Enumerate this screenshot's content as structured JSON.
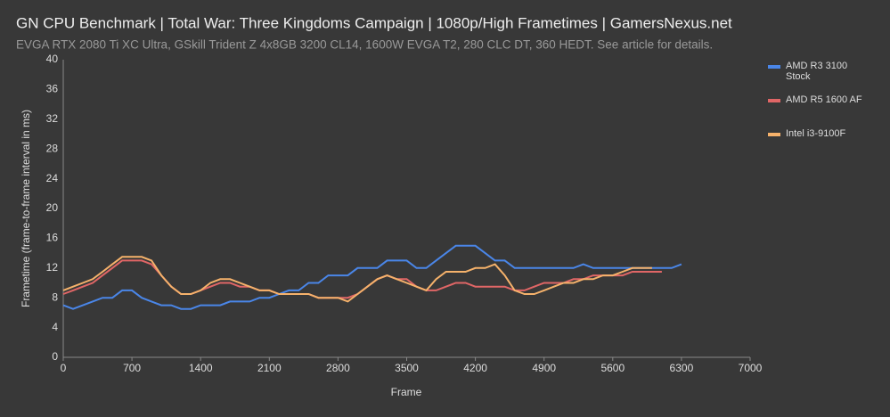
{
  "chart_data": {
    "type": "line",
    "title": "GN CPU Benchmark | Total War: Three Kingdoms Campaign | 1080p/High Frametimes | GamersNexus.net",
    "subtitle": "EVGA RTX 2080 Ti XC Ultra, GSkill Trident Z 4x8GB 3200 CL14, 1600W EVGA T2, 280 CLC DT, 360 HEDT. See article for details.",
    "x_label": "Frame",
    "y_label": "Frametime (frame-to-frame interval in ms)",
    "x": [
      0,
      100,
      200,
      300,
      400,
      500,
      600,
      700,
      800,
      900,
      1000,
      1100,
      1200,
      1300,
      1400,
      1500,
      1600,
      1700,
      1800,
      1900,
      2000,
      2100,
      2200,
      2300,
      2400,
      2500,
      2600,
      2700,
      2800,
      2900,
      3000,
      3100,
      3200,
      3300,
      3400,
      3500,
      3600,
      3700,
      3800,
      3900,
      4000,
      4100,
      4200,
      4300,
      4400,
      4500,
      4600,
      4700,
      4800,
      4900,
      5000,
      5100,
      5200,
      5300,
      5400,
      5500,
      5600,
      5700,
      5800,
      5900,
      6000,
      6100,
      6200,
      6300
    ],
    "series": [
      {
        "name": "AMD R3 3100 Stock",
        "color": "#4a86e8",
        "values": [
          7,
          6.5,
          7,
          7.5,
          8,
          8,
          9,
          9,
          8,
          7.5,
          7,
          7,
          6.5,
          6.5,
          7,
          7,
          7,
          7.5,
          7.5,
          7.5,
          8,
          8,
          8.5,
          9,
          9,
          10,
          10,
          11,
          11,
          11,
          12,
          12,
          12,
          13,
          13,
          13,
          12,
          12,
          13,
          14,
          15,
          15,
          15,
          14,
          13,
          13,
          12,
          12,
          12,
          12,
          12,
          12,
          12,
          12.5,
          12,
          12,
          12,
          12,
          12,
          12,
          12,
          12,
          12,
          12.5
        ]
      },
      {
        "name": "AMD R5 1600 AF",
        "color": "#e06666",
        "values": [
          8.5,
          9,
          9.5,
          10,
          11,
          12,
          13,
          13,
          13,
          12.5,
          11,
          9.5,
          8.5,
          8.5,
          9,
          9.5,
          10,
          10,
          9.5,
          9.5,
          9,
          9,
          8.5,
          8.5,
          8.5,
          8.5,
          8,
          8,
          8,
          8,
          8.5,
          9.5,
          10.5,
          11,
          10.5,
          10.5,
          9.5,
          9,
          9,
          9.5,
          10,
          10,
          9.5,
          9.5,
          9.5,
          9.5,
          9,
          9,
          9.5,
          10,
          10,
          10,
          10.5,
          10.5,
          11,
          11,
          11,
          11,
          11.5,
          11.5,
          11.5,
          11.5,
          null,
          null
        ]
      },
      {
        "name": "Intel i3-9100F",
        "color": "#f6b26b",
        "values": [
          9,
          9.5,
          10,
          10.5,
          11.5,
          12.5,
          13.5,
          13.5,
          13.5,
          13,
          11,
          9.5,
          8.5,
          8.5,
          9,
          10,
          10.5,
          10.5,
          10,
          9.5,
          9,
          9,
          8.5,
          8.5,
          8.5,
          8.5,
          8,
          8,
          8,
          7.5,
          8.5,
          9.5,
          10.5,
          11,
          10.5,
          10,
          9.5,
          9,
          10.5,
          11.5,
          11.5,
          11.5,
          12,
          12,
          12.5,
          11,
          9,
          8.5,
          8.5,
          9,
          9.5,
          10,
          10,
          10.5,
          10.5,
          11,
          11,
          11.5,
          12,
          12,
          12,
          null,
          null,
          null
        ]
      }
    ],
    "xlim": [
      0,
      7000
    ],
    "xticks": [
      0,
      700,
      1400,
      2100,
      2800,
      3500,
      4200,
      4900,
      5600,
      6300,
      7000
    ],
    "ylim": [
      0,
      40
    ],
    "yticks": [
      0,
      4,
      8,
      12,
      16,
      20,
      24,
      28,
      32,
      36,
      40
    ],
    "grid": false,
    "legend": "right"
  }
}
